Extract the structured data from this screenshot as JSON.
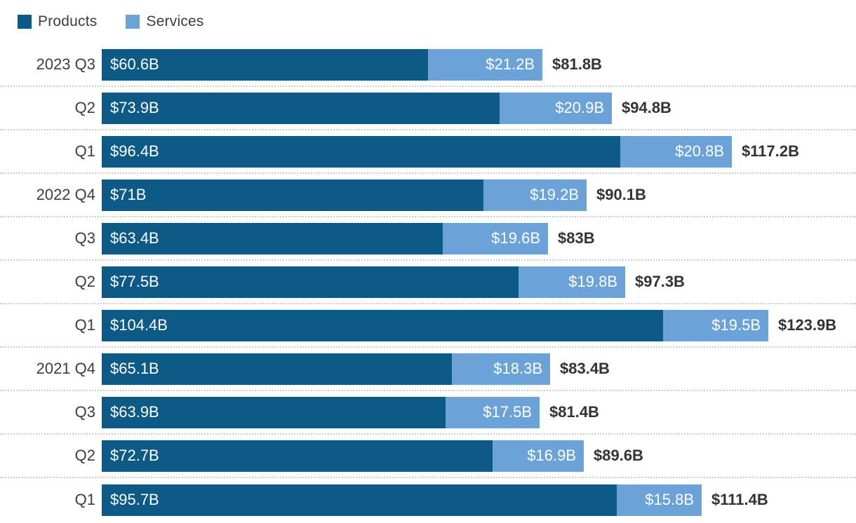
{
  "legend": {
    "items": [
      {
        "label": "Products",
        "color": "#0e5a86"
      },
      {
        "label": "Services",
        "color": "#6ba3d8"
      }
    ]
  },
  "chart_data": {
    "type": "bar",
    "orientation": "horizontal",
    "stacked": true,
    "grid": false,
    "legend_position": "top-left",
    "categories": [
      "2023 Q3",
      "Q2",
      "Q1",
      "2022 Q4",
      "Q3",
      "Q2",
      "Q1",
      "2021 Q4",
      "Q3",
      "Q2",
      "Q1"
    ],
    "series": [
      {
        "name": "Products",
        "color": "#0e5a86",
        "values": [
          60.6,
          73.9,
          96.4,
          71,
          63.4,
          77.5,
          104.4,
          65.1,
          63.9,
          72.7,
          95.7
        ],
        "labels": [
          "$60.6B",
          "$73.9B",
          "$96.4B",
          "$71B",
          "$63.4B",
          "$77.5B",
          "$104.4B",
          "$65.1B",
          "$63.9B",
          "$72.7B",
          "$95.7B"
        ]
      },
      {
        "name": "Services",
        "color": "#6ba3d8",
        "values": [
          21.2,
          20.9,
          20.8,
          19.2,
          19.6,
          19.8,
          19.5,
          18.3,
          17.5,
          16.9,
          15.8
        ],
        "labels": [
          "$21.2B",
          "$20.9B",
          "$20.8B",
          "$19.2B",
          "$19.6B",
          "$19.8B",
          "$19.5B",
          "$18.3B",
          "$17.5B",
          "$16.9B",
          "$15.8B"
        ]
      }
    ],
    "totals": {
      "values": [
        81.8,
        94.8,
        117.2,
        90.1,
        83,
        97.3,
        123.9,
        83.4,
        81.4,
        89.6,
        111.4
      ],
      "labels": [
        "$81.8B",
        "$94.8B",
        "$117.2B",
        "$90.1B",
        "$83B",
        "$97.3B",
        "$123.9B",
        "$83.4B",
        "$81.4B",
        "$89.6B",
        "$111.4B"
      ]
    },
    "xlim": [
      0,
      123.9
    ],
    "units": "billions USD"
  },
  "layout_colors": {
    "separator": "#cccccc",
    "category_text": "#3d3d3d",
    "total_text": "#333333",
    "bar_text": "#ffffff",
    "background": "#ffffff"
  }
}
